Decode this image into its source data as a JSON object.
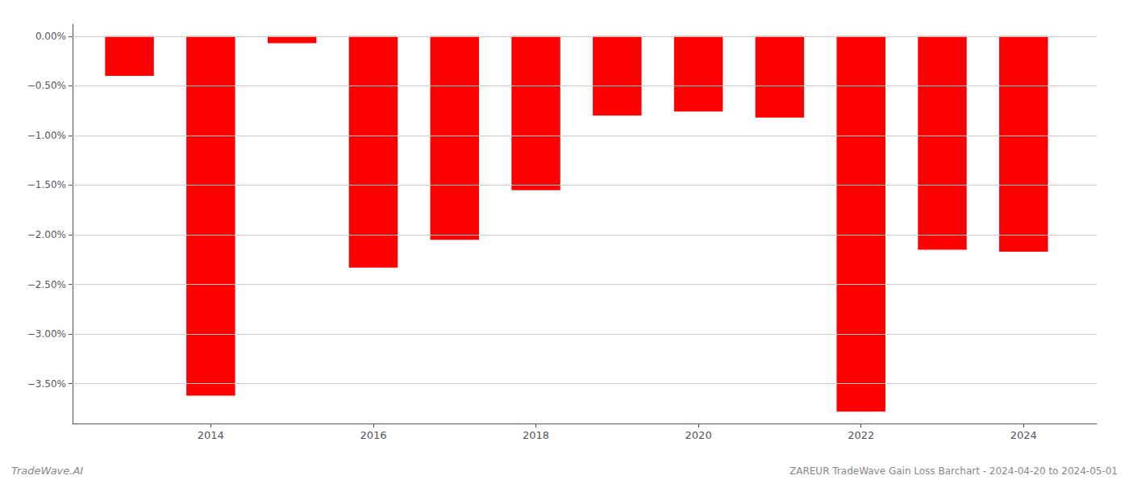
{
  "chart_data": {
    "type": "bar",
    "x": [
      2013,
      2014,
      2015,
      2016,
      2017,
      2018,
      2019,
      2020,
      2021,
      2022,
      2023,
      2024
    ],
    "values": [
      -0.4,
      -3.62,
      -0.07,
      -2.33,
      -2.05,
      -1.55,
      -0.8,
      -0.76,
      -0.82,
      -3.78,
      -2.15,
      -2.17
    ],
    "color": "#ff0000",
    "xlim": [
      2012.3,
      2024.9
    ],
    "xticks": [
      2014,
      2016,
      2018,
      2020,
      2022,
      2024
    ],
    "ylim": [
      -3.9,
      0.12
    ],
    "yticks": [
      {
        "value": 0.0,
        "label": "0.00%"
      },
      {
        "value": -0.5,
        "label": "−0.50%"
      },
      {
        "value": -1.0,
        "label": "−1.00%"
      },
      {
        "value": -1.5,
        "label": "−1.50%"
      },
      {
        "value": -2.0,
        "label": "−2.00%"
      },
      {
        "value": -2.5,
        "label": "−2.50%"
      },
      {
        "value": -3.0,
        "label": "−3.00%"
      },
      {
        "value": -3.5,
        "label": "−3.50%"
      }
    ],
    "grid": true,
    "annotations": [
      "TradeWave.AI",
      "ZAREUR TradeWave Gain Loss Barchart - 2024-04-20 to 2024-05-01"
    ]
  }
}
